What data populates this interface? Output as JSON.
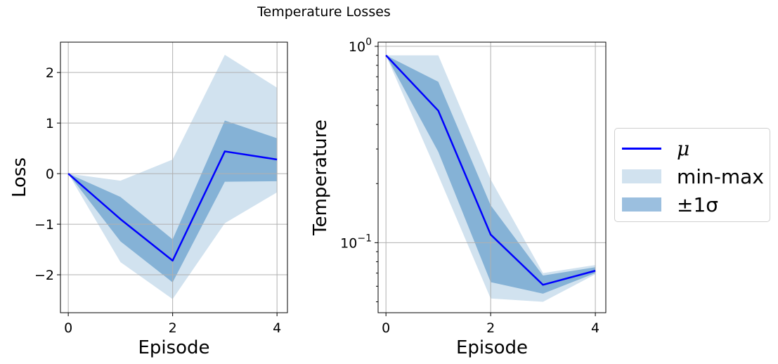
{
  "figure_title": "Temperature Losses",
  "legend": {
    "items": [
      {
        "symbol": "μ",
        "kind": "line",
        "color": "#0000ff"
      },
      {
        "label": "min-max",
        "kind": "patch",
        "color": "#d1e2ef"
      },
      {
        "symbol": "±1σ",
        "kind": "patch",
        "color": "#9bbfdf"
      }
    ]
  },
  "colors": {
    "mean": "#0000ff",
    "minmax": "#d1e2ef",
    "std": "#85b2d6",
    "grid": "#b0b0b0"
  },
  "chart_data": [
    {
      "type": "line",
      "xlabel": "Episode",
      "ylabel": "Loss",
      "x": [
        0,
        1,
        2,
        3,
        4
      ],
      "xticks": [
        0,
        2,
        4
      ],
      "xtick_labels": [
        "0",
        "2",
        "4"
      ],
      "yticks": [
        -2,
        -1,
        0,
        1,
        2
      ],
      "ytick_labels": [
        "−2",
        "−1",
        "0",
        "1",
        "2"
      ],
      "xlim": [
        -0.15,
        4.2
      ],
      "ylim": [
        -2.75,
        2.6
      ],
      "yscale": "linear",
      "grid": true,
      "series": [
        {
          "name": "μ",
          "style": "line",
          "values": [
            0.0,
            -0.9,
            -1.72,
            0.44,
            0.28
          ]
        },
        {
          "name": "min-max",
          "style": "band",
          "lower": [
            0.0,
            -1.75,
            -2.48,
            -0.98,
            -0.37
          ],
          "upper": [
            0.0,
            -0.14,
            0.28,
            2.35,
            1.7
          ]
        },
        {
          "name": "±1σ",
          "style": "band",
          "lower": [
            0.0,
            -1.34,
            -2.15,
            -0.16,
            -0.15
          ],
          "upper": [
            0.0,
            -0.46,
            -1.3,
            1.05,
            0.7
          ]
        }
      ]
    },
    {
      "type": "line",
      "xlabel": "Episode",
      "ylabel": "Temperature",
      "x": [
        0,
        1,
        2,
        3,
        4
      ],
      "xticks": [
        0,
        2,
        4
      ],
      "xtick_labels": [
        "0",
        "2",
        "4"
      ],
      "yticks": [
        0.1,
        1.0
      ],
      "ytick_labels": [
        "10^-1",
        "10^0"
      ],
      "xlim": [
        -0.15,
        4.2
      ],
      "ylim": [
        0.044,
        1.05
      ],
      "yscale": "log",
      "grid": true,
      "series": [
        {
          "name": "μ",
          "style": "line",
          "values": [
            0.9,
            0.47,
            0.11,
            0.061,
            0.072
          ]
        },
        {
          "name": "min-max",
          "style": "band",
          "lower": [
            0.9,
            0.22,
            0.052,
            0.05,
            0.069
          ],
          "upper": [
            0.9,
            0.9,
            0.21,
            0.07,
            0.077
          ]
        },
        {
          "name": "±1σ",
          "style": "band",
          "lower": [
            0.9,
            0.29,
            0.063,
            0.055,
            0.07
          ],
          "upper": [
            0.9,
            0.66,
            0.155,
            0.068,
            0.075
          ]
        }
      ]
    }
  ]
}
